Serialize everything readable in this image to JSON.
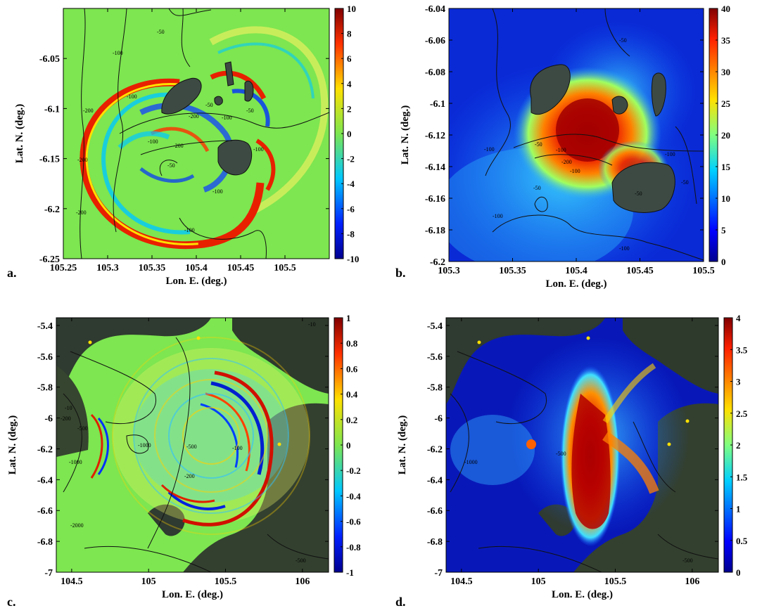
{
  "figure": {
    "panels": [
      {
        "id": "a",
        "letter": "a.",
        "colormap": "diverging",
        "background": "#7de650"
      },
      {
        "id": "b",
        "letter": "b.",
        "colormap": "jet",
        "background": "#0a2ad6"
      },
      {
        "id": "c",
        "letter": "c.",
        "colormap": "diverging",
        "background": "#7de650"
      },
      {
        "id": "d",
        "letter": "d.",
        "colormap": "jet",
        "background": "#0818b8"
      }
    ]
  },
  "chart_data": [
    {
      "type": "heatmap",
      "panel": "a",
      "title": "",
      "xlabel": "Lon. E. (deg.)",
      "ylabel": "Lat. N. (deg.)",
      "xlim": [
        105.25,
        105.55
      ],
      "ylim": [
        -6.25,
        -6.0
      ],
      "xticks": [
        "105.25",
        "105.3",
        "105.35",
        "105.4",
        "105.45",
        "105.5"
      ],
      "xtick_values": [
        105.25,
        105.3,
        105.35,
        105.4,
        105.45,
        105.5
      ],
      "yticks": [
        "-6.05",
        "-6.1",
        "-6.15",
        "-6.2",
        "-6.25"
      ],
      "ytick_values": [
        -6.05,
        -6.1,
        -6.15,
        -6.2,
        -6.25
      ],
      "colorbar": {
        "ticks": [
          "10",
          "8",
          "6",
          "4",
          "2",
          "0",
          "-2",
          "-4",
          "-6",
          "-8",
          "-10"
        ],
        "values": [
          10,
          8,
          6,
          4,
          2,
          0,
          -2,
          -4,
          -6,
          -8,
          -10
        ],
        "range": [
          -10,
          10
        ]
      },
      "contour_labels": [
        "-50",
        "-100",
        "-200",
        "-100",
        "-200",
        "-50",
        "-100",
        "-200",
        "-100",
        "-50",
        "-100",
        "-50",
        "-100",
        "-200",
        "-200",
        "-100"
      ]
    },
    {
      "type": "heatmap",
      "panel": "b",
      "title": "",
      "xlabel": "Lon. E. (deg.)",
      "ylabel": "Lat. N. (deg.)",
      "xlim": [
        105.3,
        105.5
      ],
      "ylim": [
        -6.2,
        -6.04
      ],
      "xticks": [
        "105.3",
        "105.35",
        "105.4",
        "105.45",
        "105.5"
      ],
      "xtick_values": [
        105.3,
        105.35,
        105.4,
        105.45,
        105.5
      ],
      "yticks": [
        "-6.04",
        "-6.06",
        "-6.08",
        "-6.1",
        "-6.12",
        "-6.14",
        "-6.16",
        "-6.18",
        "-6.2"
      ],
      "ytick_values": [
        -6.04,
        -6.06,
        -6.08,
        -6.1,
        -6.12,
        -6.14,
        -6.16,
        -6.18,
        -6.2
      ],
      "colorbar": {
        "ticks": [
          "40",
          "35",
          "30",
          "25",
          "20",
          "15",
          "10",
          "5",
          "0"
        ],
        "values": [
          40,
          35,
          30,
          25,
          20,
          15,
          10,
          5,
          0
        ],
        "range": [
          0,
          40
        ]
      },
      "contour_labels": [
        "-50",
        "-50",
        "-100",
        "-200",
        "-100",
        "-50",
        "-100",
        "-100",
        "-50",
        "-100",
        "-100",
        "-50"
      ]
    },
    {
      "type": "heatmap",
      "panel": "c",
      "title": "",
      "xlabel": "Lon. E. (deg.)",
      "ylabel": "Lat. N. (deg.)",
      "xlim": [
        104.4,
        106.17
      ],
      "ylim": [
        -7.0,
        -5.35
      ],
      "xticks": [
        "104.5",
        "105",
        "105.5",
        "106"
      ],
      "xtick_values": [
        104.5,
        105.0,
        105.5,
        106.0
      ],
      "yticks": [
        "-5.4",
        "-5.6",
        "-5.8",
        "-6",
        "-6.2",
        "-6.4",
        "-6.6",
        "-6.8",
        "-7"
      ],
      "ytick_values": [
        -5.4,
        -5.6,
        -5.8,
        -6.0,
        -6.2,
        -6.4,
        -6.6,
        -6.8,
        -7.0
      ],
      "colorbar": {
        "ticks": [
          "1",
          "0.8",
          "0.6",
          "0.4",
          "0.2",
          "0",
          "-0.2",
          "-0.4",
          "-0.6",
          "-0.8",
          "-1"
        ],
        "values": [
          1,
          0.8,
          0.6,
          0.4,
          0.2,
          0,
          -0.2,
          -0.4,
          -0.6,
          -0.8,
          -1
        ],
        "range": [
          -1,
          1
        ]
      },
      "contour_labels": [
        "-10",
        "-200",
        "-500",
        "-1000",
        "-1000",
        "-2000",
        "-200",
        "-500",
        "-100",
        "-10",
        "-500"
      ]
    },
    {
      "type": "heatmap",
      "panel": "d",
      "title": "",
      "xlabel": "Lon. E. (deg.)",
      "ylabel": "Lat. N. (deg.)",
      "xlim": [
        104.4,
        106.17
      ],
      "ylim": [
        -7.0,
        -5.35
      ],
      "xticks": [
        "104.5",
        "105",
        "105.5",
        "106"
      ],
      "xtick_values": [
        104.5,
        105.0,
        105.5,
        106.0
      ],
      "yticks": [
        "-5.4",
        "-5.6",
        "-5.8",
        "-6",
        "-6.2",
        "-6.4",
        "-6.6",
        "-6.8",
        "-7"
      ],
      "ytick_values": [
        -5.4,
        -5.6,
        -5.8,
        -6.0,
        -6.2,
        -6.4,
        -6.6,
        -6.8,
        -7.0
      ],
      "colorbar": {
        "ticks": [
          "4",
          "3.5",
          "3",
          "2.5",
          "2",
          "1.5",
          "1",
          "0.5",
          "0"
        ],
        "values": [
          4,
          3.5,
          3,
          2.5,
          2,
          1.5,
          1,
          0.5,
          0
        ],
        "range": [
          0,
          4
        ]
      },
      "contour_labels": [
        "-1000",
        "-500",
        "-500"
      ]
    }
  ]
}
